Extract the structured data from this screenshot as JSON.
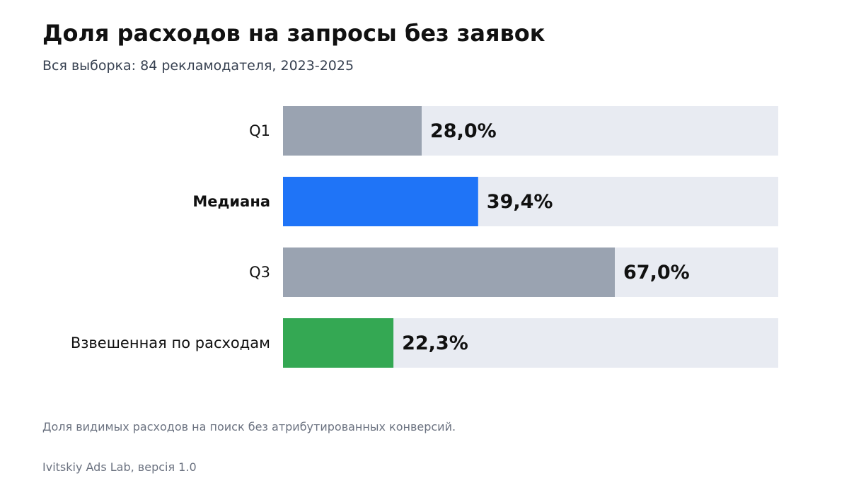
{
  "header": {
    "title": "Доля расходов на запросы без заявок",
    "subtitle": "Вся выборка: 84 рекламодателя, 2023-2025"
  },
  "chart_data": {
    "type": "bar",
    "orientation": "horizontal",
    "categories": [
      "Q1",
      "Медиана",
      "Q3",
      "Взвешенная по расходам"
    ],
    "values": [
      28.0,
      39.4,
      67.0,
      22.3
    ],
    "value_labels": [
      "28,0%",
      "39,4%",
      "67,0%",
      "22,3%"
    ],
    "emphasized_category": "Медиана",
    "xlim": [
      0,
      100
    ],
    "unit": "%",
    "grid": false,
    "legend": "none",
    "colors": {
      "bars": [
        "#9aa3b1",
        "#1f74f7",
        "#9aa3b1",
        "#34a853"
      ],
      "track": "#e8ebf2"
    }
  },
  "footer": {
    "note": "Доля видимых расходов на поиск без атрибутированных конверсий.",
    "credit": "Ivitskiy Ads Lab, версія 1.0"
  }
}
